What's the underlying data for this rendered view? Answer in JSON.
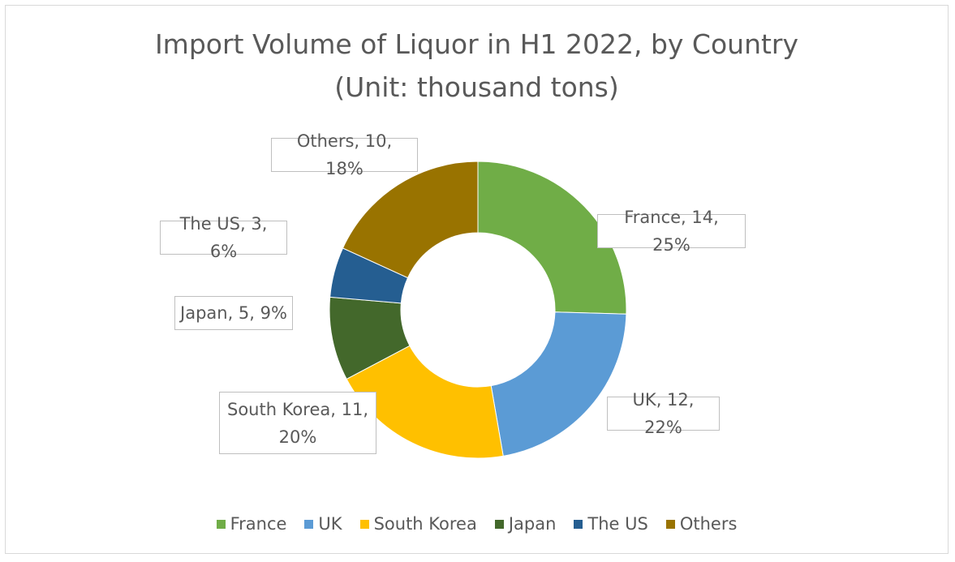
{
  "chart_data": {
    "type": "pie",
    "variant": "doughnut",
    "title": "Import Volume of Liquor in H1 2022, by Country",
    "subtitle": "(Unit: thousand tons)",
    "categories": [
      "France",
      "UK",
      "South Korea",
      "Japan",
      "The US",
      "Others"
    ],
    "values": [
      14,
      12,
      11,
      5,
      3,
      10
    ],
    "percentages": [
      "25%",
      "22%",
      "20%",
      "9%",
      "6%",
      "18%"
    ],
    "data_labels": [
      "France, 14, 25%",
      "UK, 12, 22%",
      "South Korea, 11, 20%",
      "Japan, 5, 9%",
      "The US, 3, 6%",
      "Others, 10, 18%"
    ],
    "colors": [
      "#70ad47",
      "#5b9bd5",
      "#ffc000",
      "#43682b",
      "#255e91",
      "#997300"
    ],
    "legend_position": "bottom"
  }
}
